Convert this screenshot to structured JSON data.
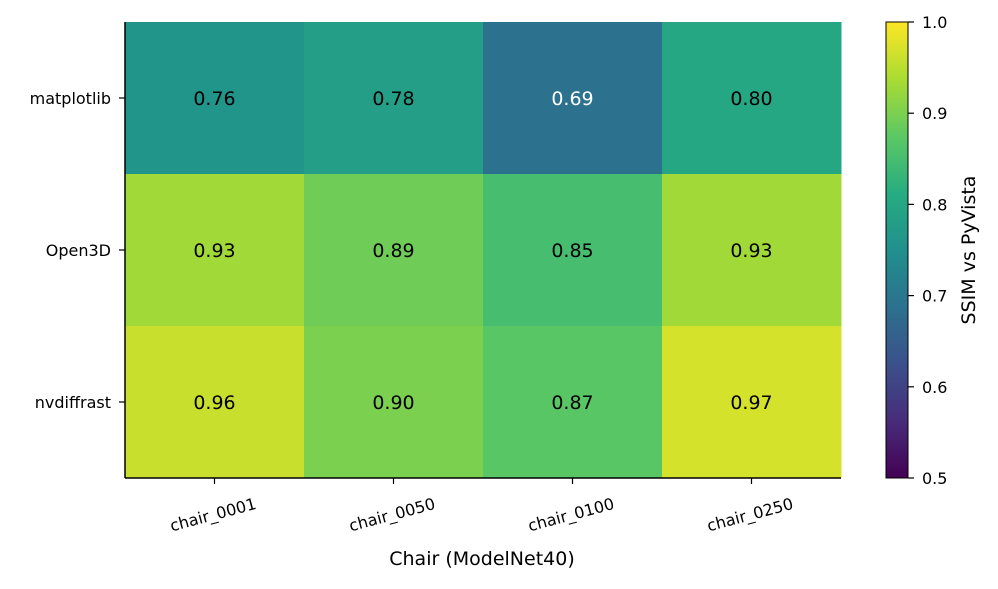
{
  "chart_data": {
    "type": "heatmap",
    "title": "",
    "xlabel": "Chair (ModelNet40)",
    "ylabel": "",
    "x_categories": [
      "chair_0001",
      "chair_0050",
      "chair_0100",
      "chair_0250"
    ],
    "y_categories": [
      "matplotlib",
      "Open3D",
      "nvdiffrast"
    ],
    "values": [
      [
        0.76,
        0.78,
        0.69,
        0.8
      ],
      [
        0.93,
        0.89,
        0.85,
        0.93
      ],
      [
        0.96,
        0.9,
        0.87,
        0.97
      ]
    ],
    "value_labels": [
      [
        "0.76",
        "0.78",
        "0.69",
        "0.80"
      ],
      [
        "0.93",
        "0.89",
        "0.85",
        "0.93"
      ],
      [
        "0.96",
        "0.90",
        "0.87",
        "0.97"
      ]
    ],
    "colormap": "viridis",
    "colorbar": {
      "label": "SSIM vs PyVista",
      "range": [
        0.5,
        1.0
      ],
      "ticks": [
        "0.5",
        "0.6",
        "0.7",
        "0.8",
        "0.9",
        "1.0"
      ]
    },
    "xtick_rotation_deg": 15,
    "grid": false,
    "legend": "none"
  }
}
